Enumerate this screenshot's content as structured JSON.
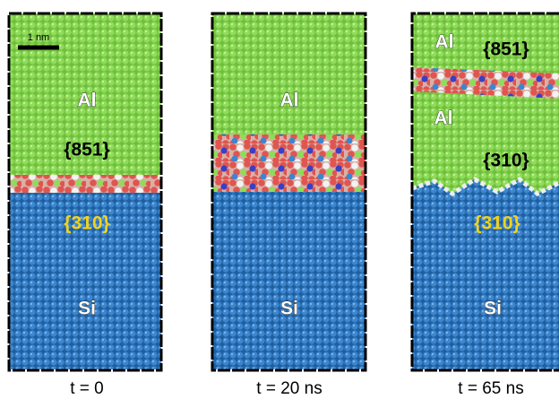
{
  "scale_bar": "1 nm",
  "panels": [
    {
      "caption": "t = 0",
      "labels": [
        "Al",
        "{851}",
        "{310}",
        "Si"
      ]
    },
    {
      "caption": "t = 20 ns",
      "labels": [
        "Al",
        "Si"
      ]
    },
    {
      "caption": "t = 65 ns",
      "labels": [
        "Al",
        "{851}",
        "Al",
        "{310}",
        "{310}",
        "Si"
      ]
    }
  ]
}
